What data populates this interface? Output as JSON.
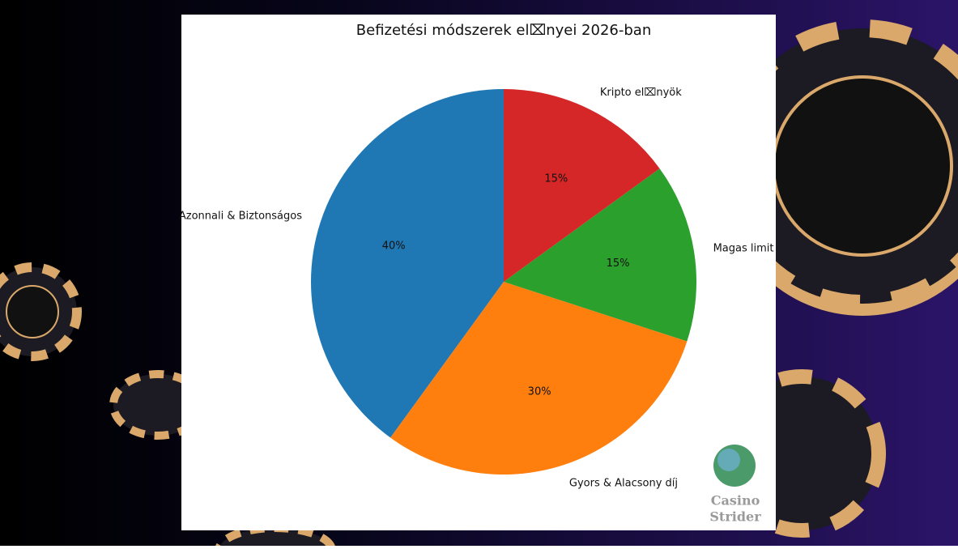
{
  "chart_data": {
    "type": "pie",
    "title": "Befizetési módszerek el⌧nyei 2026-ban",
    "categories": [
      "Azonnali & Biztonságos",
      "Gyors & Alacsony díj",
      "Magas limit",
      "Kripto el⌧nyök"
    ],
    "values": [
      40,
      30,
      15,
      15
    ],
    "value_labels": [
      "40%",
      "30%",
      "15%",
      "15%"
    ],
    "colors": [
      "#1f77b4",
      "#ff7f0e",
      "#2ca02c",
      "#d62728"
    ],
    "start_angle": 90,
    "counterclockwise": true
  },
  "watermark": {
    "line1": "Casino",
    "line2": "Strider"
  }
}
